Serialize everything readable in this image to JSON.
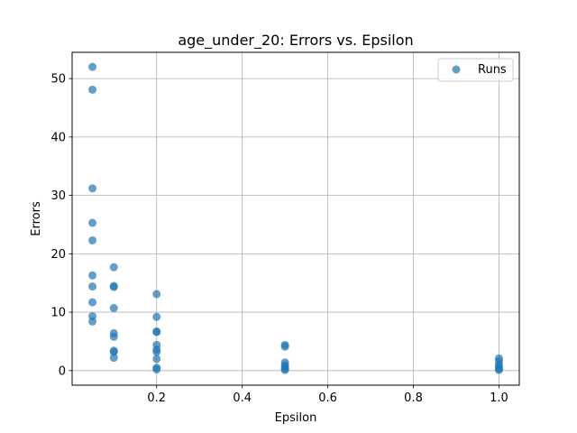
{
  "chart_data": {
    "type": "scatter",
    "title": "age_under_20: Errors vs. Epsilon",
    "xlabel": "Epsilon",
    "ylabel": "Errors",
    "xlim": [
      0.0025,
      1.0475
    ],
    "ylim": [
      -2.5,
      54.5
    ],
    "xticks": [
      0.2,
      0.4,
      0.6,
      0.8,
      1.0
    ],
    "xtick_labels": [
      "0.2",
      "0.4",
      "0.6",
      "0.8",
      "1.0"
    ],
    "yticks": [
      0,
      10,
      20,
      30,
      40,
      50
    ],
    "ytick_labels": [
      "0",
      "10",
      "20",
      "30",
      "40",
      "50"
    ],
    "grid": true,
    "legend_position": "top-right",
    "marker_color": "#1f77b4",
    "series": [
      {
        "name": "Runs",
        "points": [
          [
            0.05,
            52.0
          ],
          [
            0.05,
            48.1
          ],
          [
            0.05,
            31.2
          ],
          [
            0.05,
            25.3
          ],
          [
            0.05,
            22.3
          ],
          [
            0.05,
            16.3
          ],
          [
            0.05,
            14.4
          ],
          [
            0.05,
            11.7
          ],
          [
            0.05,
            9.3
          ],
          [
            0.05,
            8.4
          ],
          [
            0.1,
            17.7
          ],
          [
            0.1,
            14.5
          ],
          [
            0.1,
            14.3
          ],
          [
            0.1,
            10.7
          ],
          [
            0.1,
            6.4
          ],
          [
            0.1,
            5.8
          ],
          [
            0.1,
            3.4
          ],
          [
            0.1,
            3.2
          ],
          [
            0.1,
            2.2
          ],
          [
            0.2,
            13.1
          ],
          [
            0.2,
            9.2
          ],
          [
            0.2,
            6.7
          ],
          [
            0.2,
            6.6
          ],
          [
            0.2,
            4.4
          ],
          [
            0.2,
            3.6
          ],
          [
            0.2,
            3.2
          ],
          [
            0.2,
            2.0
          ],
          [
            0.2,
            0.5
          ],
          [
            0.2,
            0.2
          ],
          [
            0.5,
            4.4
          ],
          [
            0.5,
            4.1
          ],
          [
            0.5,
            1.4
          ],
          [
            0.5,
            0.9
          ],
          [
            0.5,
            0.6
          ],
          [
            0.5,
            0.3
          ],
          [
            0.5,
            0.1
          ],
          [
            1.0,
            2.1
          ],
          [
            1.0,
            1.6
          ],
          [
            1.0,
            1.0
          ],
          [
            1.0,
            0.6
          ],
          [
            1.0,
            0.3
          ],
          [
            1.0,
            0.1
          ]
        ]
      }
    ]
  }
}
